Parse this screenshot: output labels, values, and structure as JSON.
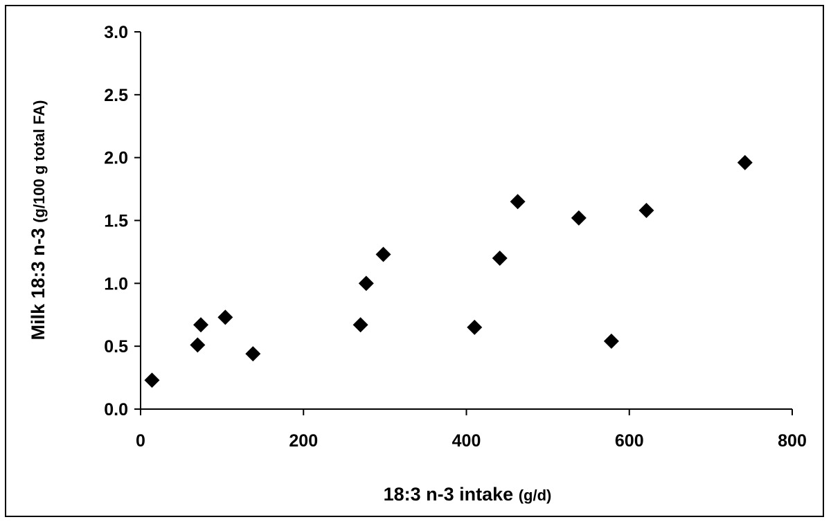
{
  "chart_data": {
    "type": "scatter",
    "xlabel": "18:3 n-3 intake",
    "xlabel_unit": "(g/d)",
    "ylabel": "Milk 18:3 n-3",
    "ylabel_unit": "(g/100 g total FA)",
    "xlim": [
      0,
      800
    ],
    "ylim": [
      0,
      3.0
    ],
    "xticks": [
      0,
      200,
      400,
      600,
      800
    ],
    "yticks": [
      0.0,
      0.5,
      1.0,
      1.5,
      2.0,
      2.5,
      3.0
    ],
    "xtick_labels": [
      "0",
      "200",
      "400",
      "600",
      "800"
    ],
    "ytick_labels": [
      "0.0",
      "0.5",
      "1.0",
      "1.5",
      "2.0",
      "2.5",
      "3.0"
    ],
    "grid": false,
    "marker": "diamond",
    "marker_color": "#000000",
    "points": [
      {
        "x": 14,
        "y": 0.23
      },
      {
        "x": 70,
        "y": 0.51
      },
      {
        "x": 74,
        "y": 0.67
      },
      {
        "x": 104,
        "y": 0.73
      },
      {
        "x": 138,
        "y": 0.44
      },
      {
        "x": 270,
        "y": 0.67
      },
      {
        "x": 277,
        "y": 1.0
      },
      {
        "x": 298,
        "y": 1.23
      },
      {
        "x": 410,
        "y": 0.65
      },
      {
        "x": 441,
        "y": 1.2
      },
      {
        "x": 463,
        "y": 1.65
      },
      {
        "x": 538,
        "y": 1.52
      },
      {
        "x": 578,
        "y": 0.54
      },
      {
        "x": 621,
        "y": 1.58
      },
      {
        "x": 742,
        "y": 1.96
      }
    ]
  }
}
